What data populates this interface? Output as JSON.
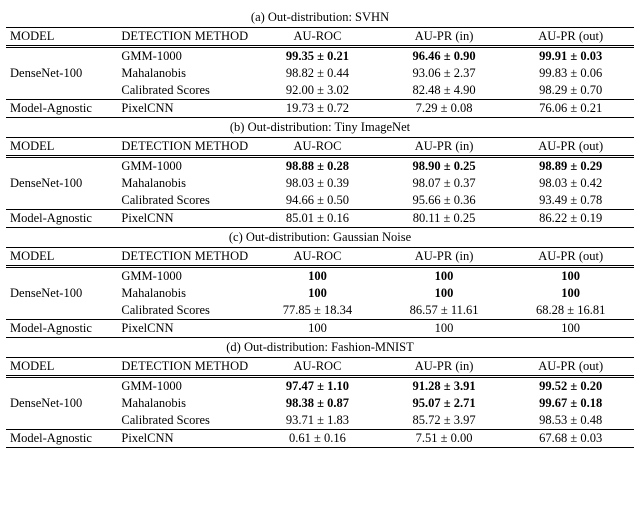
{
  "columns": {
    "model": "MODEL",
    "method": "DETECTION METHOD",
    "auroc": "AU-ROC",
    "aupr_in": "AU-PR (in)",
    "aupr_out": "AU-PR (out)"
  },
  "labels": {
    "densenet": "DenseNet-100",
    "agnostic": "Model-Agnostic",
    "gmm": "GMM-1000",
    "maha": "Mahalanobis",
    "calib": "Calibrated Scores",
    "pixelcnn": "PixelCNN"
  },
  "sections": [
    {
      "caption": "(a) Out-distribution: SVHN",
      "rows": [
        {
          "auroc": "99.35 ± 0.21",
          "aupr_in": "96.46 ± 0.90",
          "aupr_out": "99.91 ± 0.03",
          "bold": true
        },
        {
          "auroc": "98.82 ± 0.44",
          "aupr_in": "93.06 ± 2.37",
          "aupr_out": "99.83 ± 0.06",
          "bold": false
        },
        {
          "auroc": "92.00 ± 3.02",
          "aupr_in": "82.48 ± 4.90",
          "aupr_out": "98.29 ± 0.70",
          "bold": false
        }
      ],
      "agnostic": {
        "auroc": "19.73 ± 0.72",
        "aupr_in": "7.29 ± 0.08",
        "aupr_out": "76.06 ± 0.21"
      }
    },
    {
      "caption": "(b) Out-distribution: Tiny ImageNet",
      "rows": [
        {
          "auroc": "98.88 ± 0.28",
          "aupr_in": "98.90 ± 0.25",
          "aupr_out": "98.89 ± 0.29",
          "bold": true
        },
        {
          "auroc": "98.03 ± 0.39",
          "aupr_in": "98.07 ± 0.37",
          "aupr_out": "98.03 ± 0.42",
          "bold": false
        },
        {
          "auroc": "94.66 ± 0.50",
          "aupr_in": "95.66 ± 0.36",
          "aupr_out": "93.49 ± 0.78",
          "bold": false
        }
      ],
      "agnostic": {
        "auroc": "85.01 ± 0.16",
        "aupr_in": "80.11 ± 0.25",
        "aupr_out": "86.22 ± 0.19"
      }
    },
    {
      "caption": "(c) Out-distribution: Gaussian Noise",
      "rows": [
        {
          "auroc": "100",
          "aupr_in": "100",
          "aupr_out": "100",
          "bold": true
        },
        {
          "auroc": "100",
          "aupr_in": "100",
          "aupr_out": "100",
          "bold": true
        },
        {
          "auroc": "77.85 ± 18.34",
          "aupr_in": "86.57 ± 11.61",
          "aupr_out": "68.28 ± 16.81",
          "bold": false
        }
      ],
      "agnostic": {
        "auroc": "100",
        "aupr_in": "100",
        "aupr_out": "100"
      }
    },
    {
      "caption": "(d) Out-distribution: Fashion-MNIST",
      "rows": [
        {
          "auroc": "97.47 ± 1.10",
          "aupr_in": "91.28 ± 3.91",
          "aupr_out": "99.52 ± 0.20",
          "bold": true
        },
        {
          "auroc": "98.38 ± 0.87",
          "aupr_in": "95.07 ± 2.71",
          "aupr_out": "99.67 ± 0.18",
          "bold": true
        },
        {
          "auroc": "93.71 ± 1.83",
          "aupr_in": "85.72 ± 3.97",
          "aupr_out": "98.53 ± 0.48",
          "bold": false
        }
      ],
      "agnostic": {
        "auroc": "0.61 ± 0.16",
        "aupr_in": "7.51 ± 0.00",
        "aupr_out": "67.68 ± 0.03"
      }
    }
  ]
}
